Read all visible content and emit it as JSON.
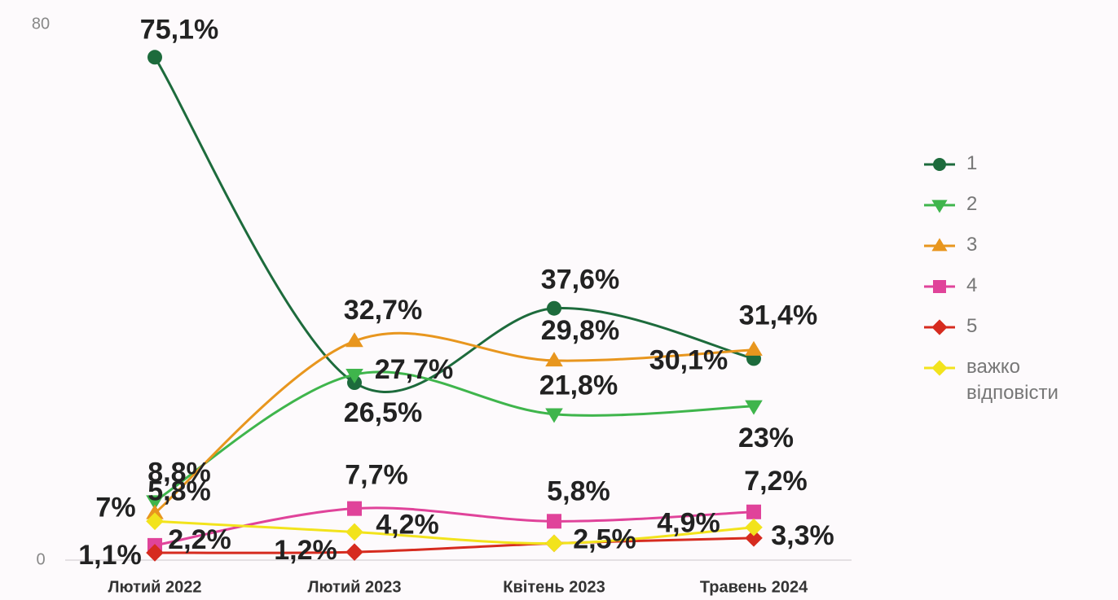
{
  "chart_data": {
    "type": "line",
    "categories": [
      "Лютий 2022",
      "Лютий 2023",
      "Квітень 2023",
      "Травень 2024"
    ],
    "ylim": [
      0,
      80
    ],
    "yticks": [
      0,
      80
    ],
    "legend": "right",
    "series": [
      {
        "name": "1",
        "color": "#1d6b3c",
        "marker": "circle",
        "values": [
          75.1,
          26.5,
          37.6,
          30.1
        ],
        "value_labels": [
          "75,1%",
          "26,5%",
          "37,6%",
          "30,1%"
        ]
      },
      {
        "name": "2",
        "color": "#3fb54c",
        "marker": "triangle-down",
        "values": [
          8.8,
          27.7,
          21.8,
          23
        ],
        "value_labels": [
          "8,8%",
          "27,7%",
          "21,8%",
          "23%"
        ]
      },
      {
        "name": "3",
        "color": "#e8961e",
        "marker": "triangle-up",
        "values": [
          7,
          32.7,
          29.8,
          31.4
        ],
        "value_labels": [
          "7%",
          "32,7%",
          "29,8%",
          "31,4%"
        ]
      },
      {
        "name": "4",
        "color": "#e0439a",
        "marker": "square",
        "values": [
          2.2,
          7.7,
          5.8,
          7.2
        ],
        "value_labels": [
          "2,2%",
          "7,7%",
          "5,8%",
          "7,2%"
        ]
      },
      {
        "name": "5",
        "color": "#d62b1f",
        "marker": "diamond",
        "values": [
          1.1,
          1.2,
          2.5,
          3.3
        ],
        "value_labels": [
          "1,1%",
          "1,2%",
          "2,5%",
          "3,3%"
        ]
      },
      {
        "name": "важко відповісти",
        "color": "#f2e31c",
        "marker": "diamond",
        "values": [
          5.8,
          4.2,
          2.5,
          4.9
        ],
        "value_labels": [
          "5,8%",
          "4,2%",
          null,
          "4,9%"
        ]
      }
    ]
  }
}
